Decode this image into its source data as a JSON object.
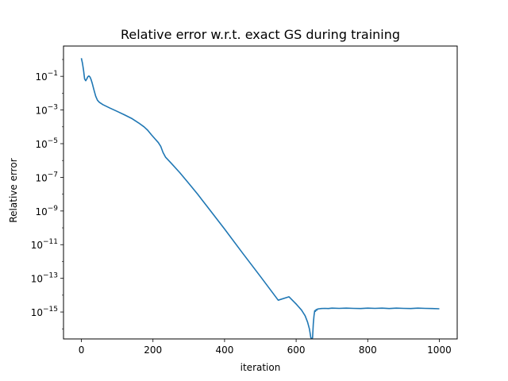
{
  "chart_data": {
    "type": "line",
    "title": "Relative error w.r.t. exact GS during training",
    "xlabel": "iteration",
    "ylabel": "Relative error",
    "xlim": [
      -50,
      1050
    ],
    "ylim_log10": [
      -16.6,
      0.8
    ],
    "y_scale": "log",
    "grid": false,
    "legend": "none",
    "x_ticks": [
      0,
      200,
      400,
      600,
      800,
      1000
    ],
    "y_ticks": [
      {
        "exp": -1,
        "base": "10",
        "sup": "−1"
      },
      {
        "exp": -3,
        "base": "10",
        "sup": "−3"
      },
      {
        "exp": -5,
        "base": "10",
        "sup": "−5"
      },
      {
        "exp": -7,
        "base": "10",
        "sup": "−7"
      },
      {
        "exp": -9,
        "base": "10",
        "sup": "−9"
      },
      {
        "exp": -11,
        "base": "10",
        "sup": "−11"
      },
      {
        "exp": -13,
        "base": "10",
        "sup": "−13"
      },
      {
        "exp": -15,
        "base": "10",
        "sup": "−15"
      }
    ],
    "series": [
      {
        "color": "#1f77b4",
        "x": [
          0,
          3,
          6,
          9,
          12,
          15,
          18,
          21,
          24,
          27,
          30,
          35,
          40,
          45,
          50,
          60,
          80,
          100,
          120,
          140,
          160,
          175,
          185,
          195,
          205,
          215,
          222,
          228,
          235,
          250,
          275,
          300,
          325,
          350,
          400,
          450,
          500,
          550,
          580,
          600,
          615,
          625,
          632,
          637,
          641,
          644,
          646,
          648,
          650,
          652,
          654,
          656,
          658,
          660,
          665,
          670,
          680,
          690,
          700,
          720,
          740,
          760,
          780,
          800,
          820,
          840,
          860,
          880,
          900,
          920,
          940,
          960,
          980,
          1000
        ],
        "y": [
          1.2,
          0.6,
          0.22,
          0.07,
          0.055,
          0.07,
          0.095,
          0.105,
          0.09,
          0.065,
          0.04,
          0.016,
          0.0065,
          0.0038,
          0.0029,
          0.0021,
          0.0013,
          0.00083,
          0.00052,
          0.00032,
          0.00017,
          0.0001,
          6.3e-05,
          3.5e-05,
          2e-05,
          1.15e-05,
          6.8e-06,
          3e-06,
          1.6e-06,
          7.2e-07,
          1.9e-07,
          4.4e-08,
          9.8e-09,
          2e-09,
          8.5e-11,
          3.2e-12,
          1.3e-13,
          5e-15,
          8e-15,
          3e-15,
          1.3e-15,
          6e-16,
          2.5e-16,
          1e-16,
          3e-17,
          1e-17,
          3e-17,
          2e-16,
          6e-16,
          1.2e-15,
          1.1e-15,
          1.4e-15,
          1.3e-15,
          1.5e-15,
          1.55e-15,
          1.6e-15,
          1.65e-15,
          1.6e-15,
          1.7e-15,
          1.65e-15,
          1.7e-15,
          1.65e-15,
          1.6e-15,
          1.7e-15,
          1.65e-15,
          1.7e-15,
          1.6e-15,
          1.7e-15,
          1.65e-15,
          1.6e-15,
          1.7e-15,
          1.65e-15,
          1.6e-15,
          1.55e-15
        ]
      }
    ]
  }
}
